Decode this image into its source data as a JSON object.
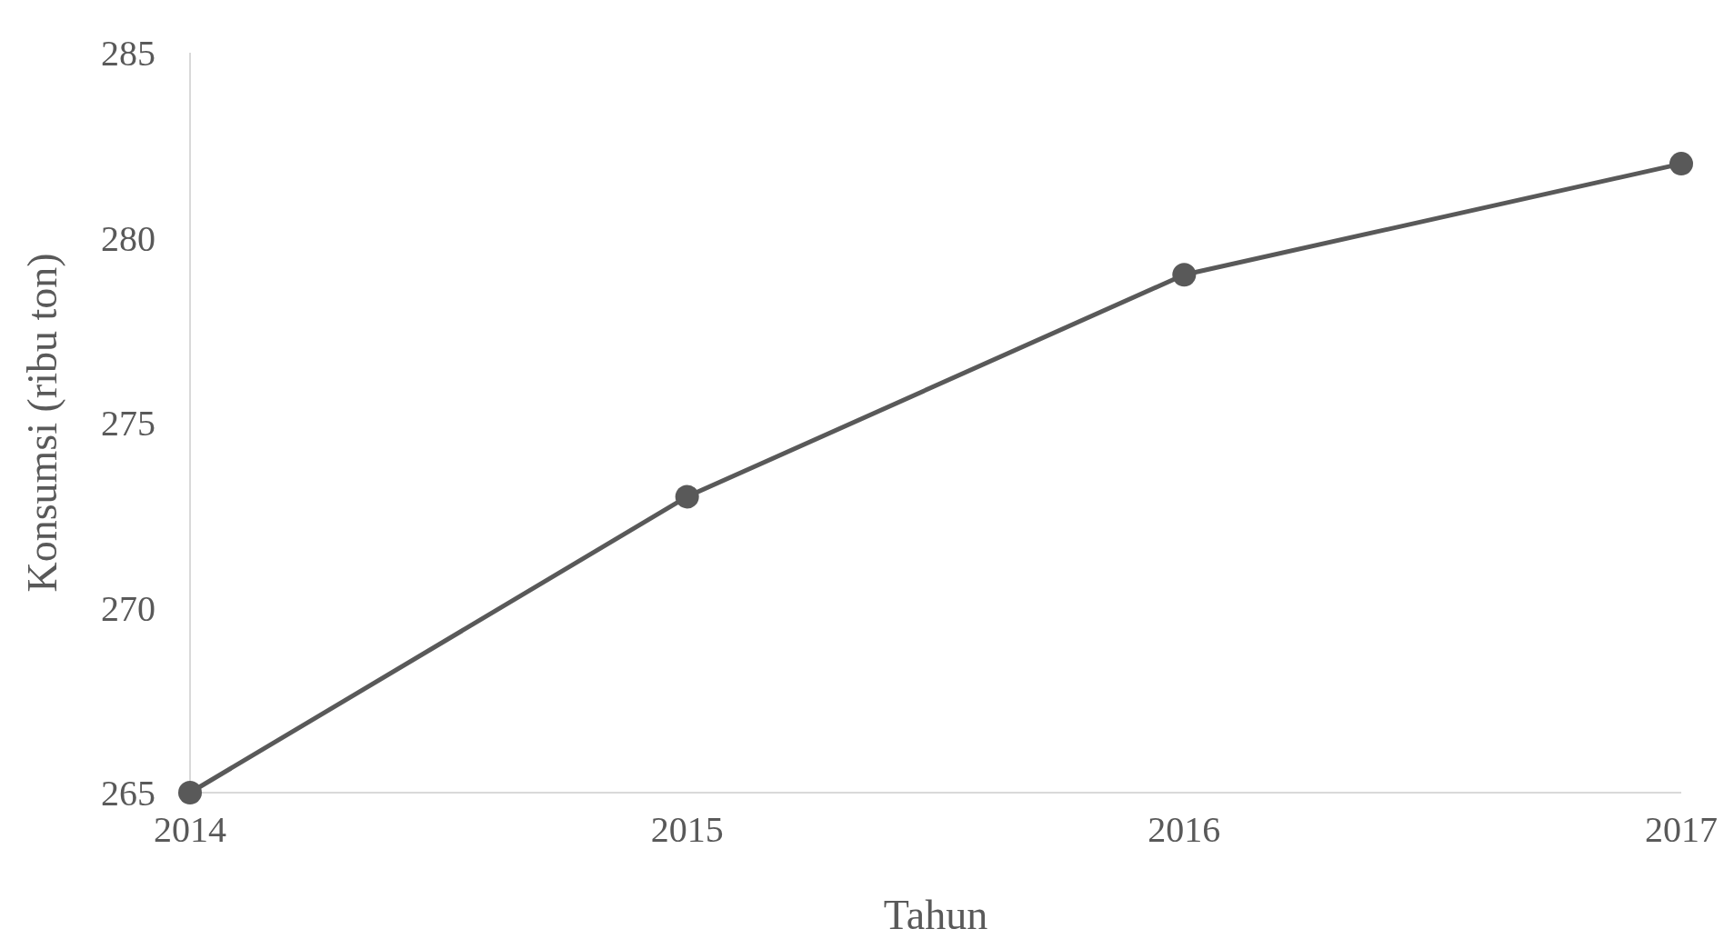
{
  "chart_data": {
    "type": "line",
    "xlabel": "Tahun",
    "ylabel": "Konsumsi (ribu ton)",
    "categories": [
      "2014",
      "2015",
      "2016",
      "2017"
    ],
    "series": [
      {
        "color": "#595959",
        "values": [
          265,
          273,
          279,
          282
        ]
      }
    ],
    "ylim": [
      265,
      285
    ],
    "yticks": [
      265,
      270,
      275,
      280,
      285
    ],
    "grid": false,
    "marker": "circle",
    "line_style": "solid"
  }
}
